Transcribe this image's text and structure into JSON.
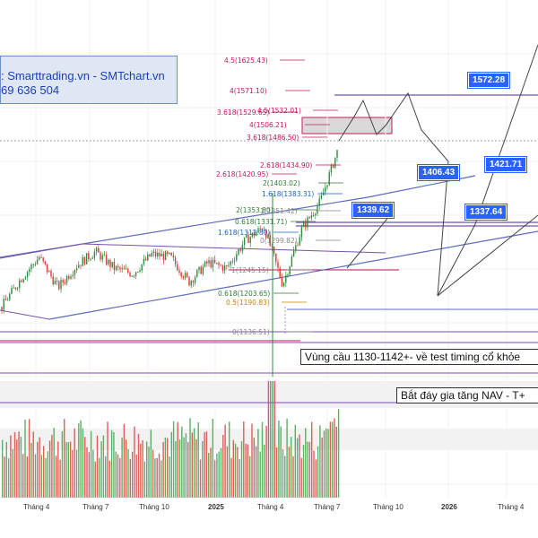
{
  "info": {
    "line1": ": Smarttrading.vn - SMTchart.vn",
    "line2": "69 636 504"
  },
  "fib_levels": [
    {
      "label": "4.5(1625.43)",
      "price": 1625.43,
      "color": "#c2185b"
    },
    {
      "label": "4(1571.10)",
      "price": 1571.1,
      "color": "#c2185b"
    },
    {
      "label": "3.618(1529.65)",
      "price": 1529.65,
      "color": "#c2185b"
    },
    {
      "label": "4.5(1532.01)",
      "price": 1532.01,
      "color": "#c2185b"
    },
    {
      "label": "4(1506.21)",
      "price": 1506.21,
      "color": "#c2185b"
    },
    {
      "label": "3.618(1486.50)",
      "price": 1486.5,
      "color": "#c2185b"
    },
    {
      "label": "2.618(1434.90)",
      "price": 1434.9,
      "color": "#c2185b"
    },
    {
      "label": "2.618(1420.95)",
      "price": 1420.95,
      "color": "#c2185b"
    },
    {
      "label": "2(1403.02)",
      "price": 1403.02,
      "color": "#2e7d32"
    },
    {
      "label": "1.618(1383.31)",
      "price": 1383.31,
      "color": "#1565c0"
    },
    {
      "label": "2(1353.80)",
      "price": 1353.8,
      "color": "#2e7d32"
    },
    {
      "label": "1(1351.42)",
      "price": 1351.42,
      "color": "#888888"
    },
    {
      "label": "0.618(1331.71)",
      "price": 1331.71,
      "color": "#2e7d32"
    },
    {
      "label": "1.618(1312.80)",
      "price": 1312.8,
      "color": "#1565c0"
    },
    {
      "label": "0(1299.82)",
      "price": 1299.82,
      "color": "#888888"
    },
    {
      "label": "1(1245.15)",
      "price": 1245.15,
      "color": "#888888"
    },
    {
      "label": "0.618(1203.65)",
      "price": 1203.65,
      "color": "#2e7d32"
    },
    {
      "label": "0.5(1190.83)",
      "price": 1190.83,
      "color": "#c68400"
    },
    {
      "label": "0(1136.51)",
      "price": 1136.51,
      "color": "#888888"
    }
  ],
  "price_tags": [
    {
      "label": "1572.28"
    },
    {
      "label": "1406.43"
    },
    {
      "label": "1421.71"
    },
    {
      "label": "1339.62"
    },
    {
      "label": "1337.64"
    }
  ],
  "annotations": {
    "support": "Vùng cầu 1130-1142+- về test timing cổ khỏe",
    "nav": "Bắt đáy gia tăng NAV - T+"
  },
  "x_axis": [
    "Tháng 4",
    "Tháng 7",
    "Tháng 10",
    "2025",
    "Tháng 4",
    "Tháng 7",
    "Tháng 10",
    "2026",
    "Tháng 4"
  ],
  "chart_data": {
    "type": "candlestick",
    "title": "",
    "x_ticks": [
      "Tháng 4",
      "Tháng 7",
      "Tháng 10",
      "2025",
      "Tháng 4",
      "Tháng 7",
      "Tháng 10",
      "2026",
      "Tháng 4"
    ],
    "ylim": [
      1100,
      1660
    ],
    "close_path": [
      {
        "x": "2024-01",
        "y": 1180
      },
      {
        "x": "2024-02",
        "y": 1230
      },
      {
        "x": "2024-03",
        "y": 1270
      },
      {
        "x": "2024-04",
        "y": 1215
      },
      {
        "x": "2024-05",
        "y": 1255
      },
      {
        "x": "2024-06",
        "y": 1280
      },
      {
        "x": "2024-07",
        "y": 1250
      },
      {
        "x": "2024-08",
        "y": 1240
      },
      {
        "x": "2024-09",
        "y": 1275
      },
      {
        "x": "2024-10",
        "y": 1270
      },
      {
        "x": "2024-11",
        "y": 1225
      },
      {
        "x": "2024-12",
        "y": 1260
      },
      {
        "x": "2025-01",
        "y": 1250
      },
      {
        "x": "2025-02",
        "y": 1300
      },
      {
        "x": "2025-03",
        "y": 1325
      },
      {
        "x": "2025-04",
        "y": 1220
      },
      {
        "x": "2025-05",
        "y": 1320
      },
      {
        "x": "2025-06",
        "y": 1370
      },
      {
        "x": "2025-07",
        "y": 1470
      }
    ],
    "projection_path": [
      1470,
      1505,
      1490,
      1510,
      1475,
      1570,
      1470,
      1410,
      1340,
      1400,
      1570
    ]
  }
}
